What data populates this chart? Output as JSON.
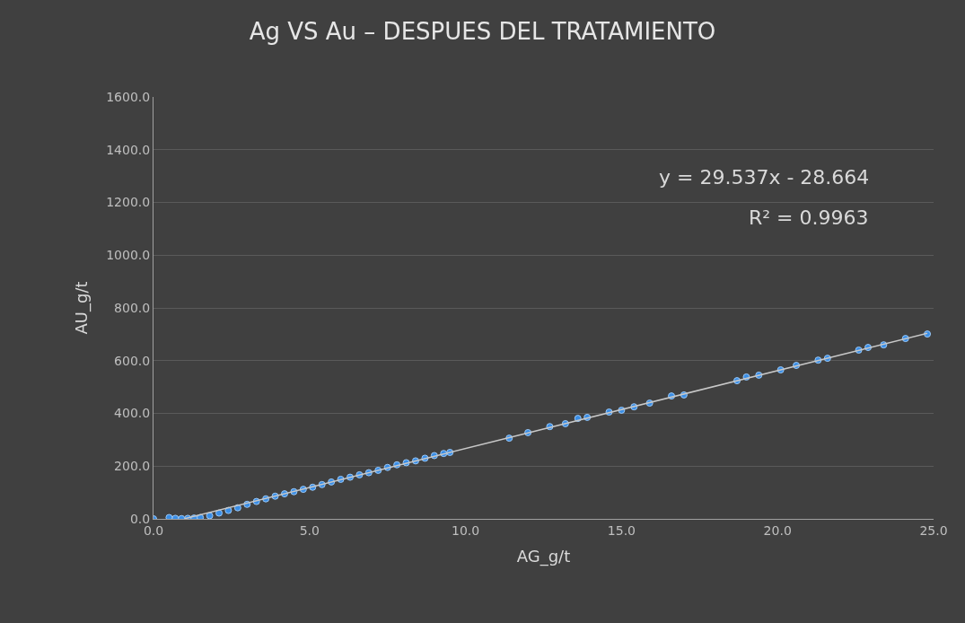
{
  "chart_data": {
    "type": "scatter",
    "title": "Ag VS Au – DESPUES DEL TRATAMIENTO",
    "xlabel": "AG_g/t",
    "ylabel": "AU_g/t",
    "annotations": [
      "y = 29.537x - 28.664",
      "R² = 0.9963"
    ],
    "xlim": [
      0,
      25
    ],
    "xticks": [
      {
        "value": 0,
        "label": "0.0"
      },
      {
        "value": 5,
        "label": "5.0"
      },
      {
        "value": 10,
        "label": "10.0"
      },
      {
        "value": 15,
        "label": "15.0"
      },
      {
        "value": 20,
        "label": "20.0"
      },
      {
        "value": 25,
        "label": "25.0"
      }
    ],
    "ylim": [
      0,
      1600
    ],
    "yticks": [
      {
        "value": 0,
        "label": "0.0"
      },
      {
        "value": 200,
        "label": "200.0"
      },
      {
        "value": 400,
        "label": "400.0"
      },
      {
        "value": 600,
        "label": "600.0"
      },
      {
        "value": 800,
        "label": "800.0"
      },
      {
        "value": 1000,
        "label": "1000.0"
      },
      {
        "value": 1200,
        "label": "1200.0"
      },
      {
        "value": 1400,
        "label": "1400.0"
      },
      {
        "value": 1600,
        "label": "1600.0"
      }
    ],
    "grid": "y",
    "marker": "circle",
    "legend": false,
    "series": [
      {
        "color": "#3a8ee6",
        "x": [
          0.0,
          0.5,
          0.7,
          0.9,
          1.1,
          1.3,
          1.5,
          1.8,
          2.1,
          2.4,
          2.7,
          3.0,
          3.3,
          3.6,
          3.9,
          4.2,
          4.5,
          4.8,
          5.1,
          5.4,
          5.7,
          6.0,
          6.3,
          6.6,
          6.9,
          7.2,
          7.5,
          7.8,
          8.1,
          8.4,
          8.7,
          9.0,
          9.3,
          9.5,
          11.4,
          12.0,
          12.7,
          13.2,
          13.6,
          13.9,
          14.6,
          15.0,
          15.4,
          15.9,
          16.6,
          17.0,
          18.7,
          19.0,
          19.4,
          20.1,
          20.6,
          21.3,
          21.6,
          22.6,
          22.9,
          23.4,
          24.1,
          24.8
        ],
        "values": [
          0,
          5,
          2,
          1,
          2,
          3,
          5,
          12,
          22,
          32,
          42,
          55,
          66,
          76,
          86,
          95,
          103,
          112,
          120,
          130,
          140,
          150,
          158,
          167,
          175,
          184,
          195,
          205,
          213,
          220,
          230,
          240,
          248,
          252,
          306,
          327,
          350,
          361,
          381,
          385,
          405,
          412,
          425,
          439,
          466,
          470,
          524,
          538,
          545,
          565,
          582,
          602,
          609,
          640,
          650,
          660,
          684,
          701
        ]
      },
      {
        "type": "line",
        "marker": "none",
        "color": "#c8c8c8",
        "x": [
          1,
          24.8
        ],
        "values": [
          1,
          704
        ]
      }
    ]
  }
}
